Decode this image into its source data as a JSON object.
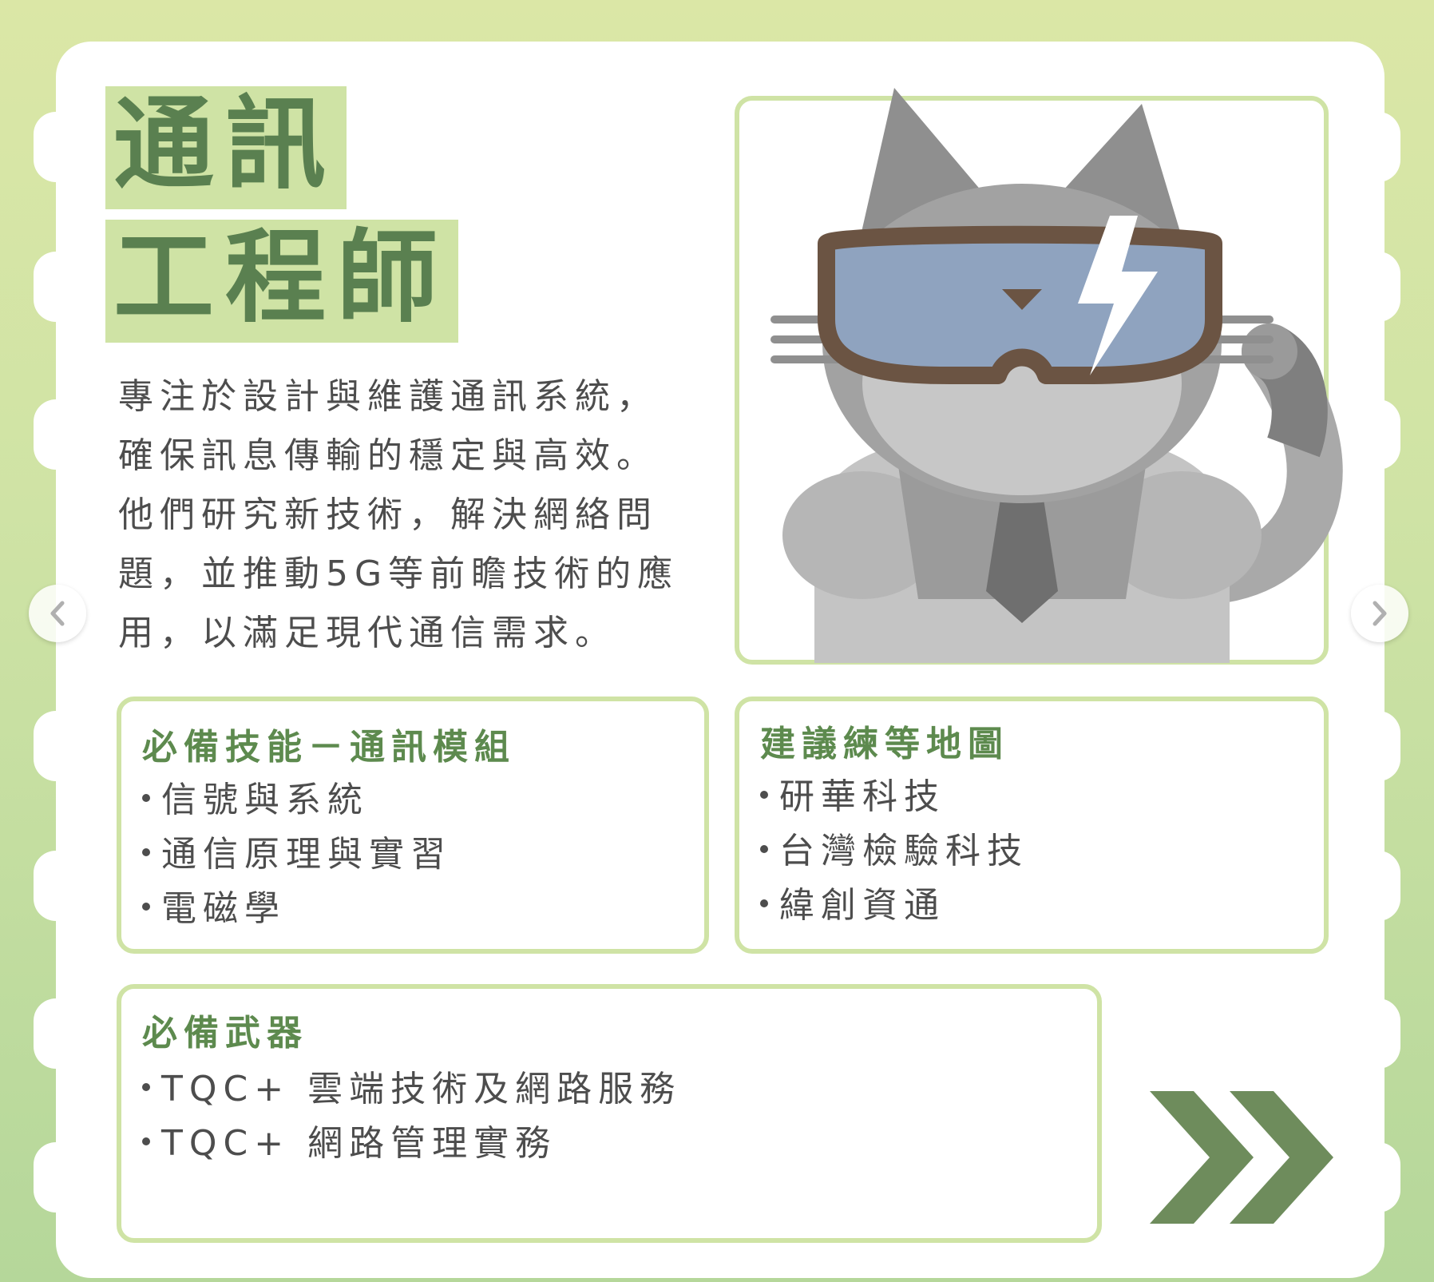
{
  "title": {
    "line1": "通訊",
    "line2": "工程師"
  },
  "description_lines": [
    "專注於設計與維護通訊系統，",
    "確保訊息傳輸的穩定與高效。",
    "他們研究新技術，解決網絡問",
    "題，並推動5G等前瞻技術的應",
    "用，以滿足現代通信需求。"
  ],
  "skills": {
    "heading": "必備技能－通訊模組",
    "items": [
      "信號與系統",
      "通信原理與實習",
      "電磁學"
    ]
  },
  "maps": {
    "heading": "建議練等地圖",
    "items": [
      "研華科技",
      "台灣檢驗科技",
      "緯創資通"
    ]
  },
  "weapons": {
    "heading": "必備武器",
    "items": [
      "TQC+ 雲端技術及網路服務",
      "TQC+ 網路管理實務"
    ]
  },
  "icons": {
    "prev": "chevron-left-icon",
    "next": "chevron-right-icon",
    "continue": "double-chevron-right-icon",
    "mascot": "cat-engineer-goggles-illustration"
  },
  "colors": {
    "accent_green": "#5d8a4e",
    "highlight_green": "#cfe3a5",
    "text_gray": "#4d4d4d"
  }
}
